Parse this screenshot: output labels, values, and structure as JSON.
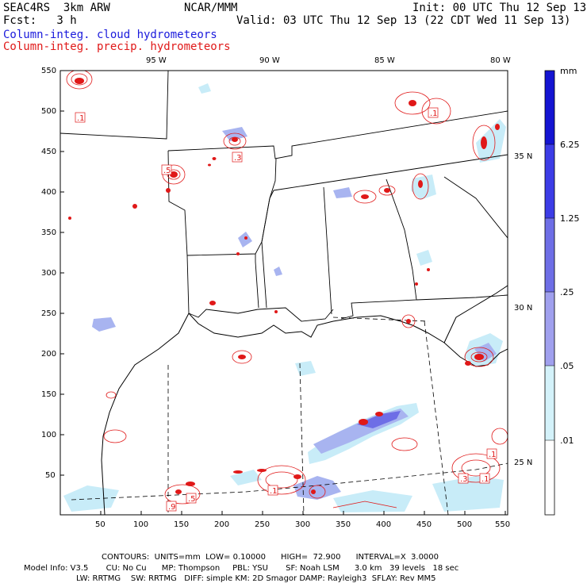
{
  "header": {
    "model": "SEAC4RS  3km ARW",
    "fcst": "Fcst:   3 h",
    "center": "NCAR/MMM",
    "init": "Init: 00 UTC Thu 12 Sep 13",
    "valid": "Valid: 03 UTC Thu 12 Sep 13 (22 CDT Wed 11 Sep 13)",
    "field_cloud": "Column-integ. cloud hydrometeors",
    "field_precip": "Column-integ. precip. hydrometeors"
  },
  "map": {
    "top_lon_labels": [
      "95 W",
      "90 W",
      "85 W",
      "80 W"
    ],
    "right_lat_labels": [
      "35 N",
      "30 N",
      "25 N"
    ],
    "left_ticks": [
      "550",
      "500",
      "450",
      "400",
      "350",
      "300",
      "250",
      "200",
      "150",
      "100",
      "50"
    ],
    "bottom_ticks": [
      "50",
      "100",
      "150",
      "200",
      "250",
      "300",
      "350",
      "400",
      "450",
      "500",
      "550"
    ],
    "contour_labels": [
      ".1",
      ".3",
      ".5",
      ".1",
      ".1",
      ".3",
      ".1",
      ".9",
      ".5",
      ".1"
    ]
  },
  "colorbar": {
    "unit": "mm",
    "labels": [
      "6.25",
      "1.25",
      ".25",
      ".05",
      ".01"
    ],
    "colors": [
      "#1414d2",
      "#3c3ce6",
      "#6e6ee6",
      "#a0a0ee",
      "#d4f2fa",
      "#ffffff"
    ]
  },
  "footer": {
    "contours": "CONTOURS:  UNITS=mm  LOW= 0.10000      HIGH=  72.900      INTERVAL=X  3.0000",
    "model_line1": "Model Info: V3.5       CU: No Cu      MP: Thompson     PBL: YSU       SF: Noah LSM      3.0 km   39 levels   18 sec",
    "model_line2": "LW: RRTMG    SW: RRTMG   DIFF: simple KM: 2D Smagor DAMP: Rayleigh3  SFLAY: Rev MM5"
  },
  "colors": {
    "precip": "#e01818",
    "cloud_light": "#c8ecf8",
    "cloud_mid": "#a8b4f0",
    "cloud_dark": "#6e6ee6"
  }
}
